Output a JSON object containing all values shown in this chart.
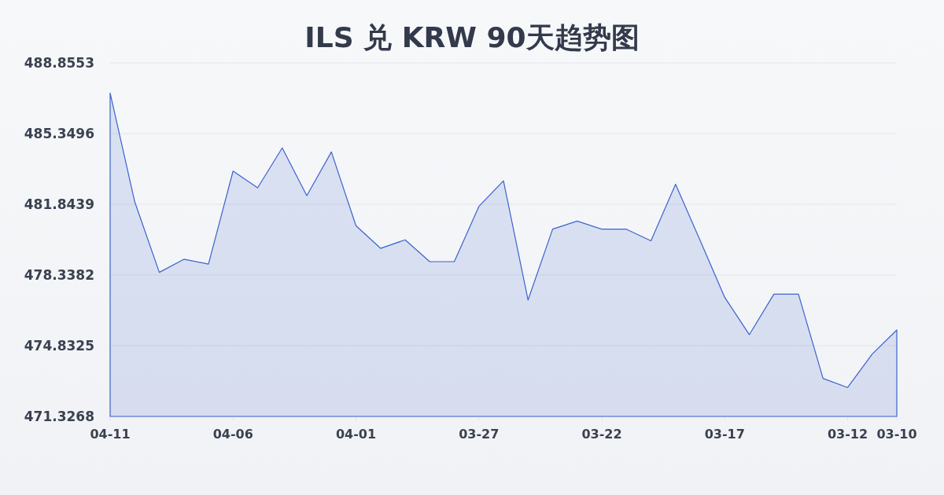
{
  "chart_data": {
    "type": "area",
    "title": "ILS 兑 KRW 90天趋势图",
    "categories": [
      "04-11",
      null,
      null,
      null,
      null,
      "04-06",
      null,
      null,
      null,
      null,
      "04-01",
      null,
      null,
      null,
      null,
      "03-27",
      null,
      null,
      null,
      null,
      "03-22",
      null,
      null,
      null,
      null,
      "03-17",
      null,
      null,
      null,
      null,
      "03-12",
      null,
      "03-10"
    ],
    "values": [
      487.36,
      481.97,
      478.47,
      479.12,
      478.88,
      483.49,
      482.66,
      484.64,
      482.27,
      484.44,
      480.78,
      479.66,
      480.08,
      479.0,
      479.0,
      481.74,
      483.01,
      477.1,
      480.61,
      481.01,
      480.61,
      480.61,
      480.03,
      482.84,
      480.05,
      477.23,
      475.38,
      477.39,
      477.39,
      473.21,
      472.76,
      474.42,
      475.61
    ],
    "color": "#3b63cc",
    "ylim": [
      471.3268,
      488.8553
    ],
    "yticks": [
      471.3268,
      474.8325,
      478.3382,
      481.8439,
      485.3496,
      488.8553
    ],
    "grid": "y"
  }
}
